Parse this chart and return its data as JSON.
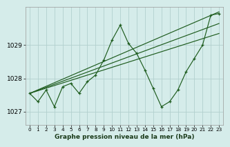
{
  "xlabel": "Graphe pression niveau de la mer (hPa)",
  "xlim": [
    -0.5,
    23.5
  ],
  "ylim": [
    1026.6,
    1030.15
  ],
  "yticks": [
    1027,
    1028,
    1029
  ],
  "xticks": [
    0,
    1,
    2,
    3,
    4,
    5,
    6,
    7,
    8,
    9,
    10,
    11,
    12,
    13,
    14,
    15,
    16,
    17,
    18,
    19,
    20,
    21,
    22,
    23
  ],
  "bg_color": "#d5ecea",
  "grid_color": "#b2d0ce",
  "line_color": "#1e5c1e",
  "zigzag": [
    1027.55,
    1027.3,
    1027.65,
    1027.15,
    1027.75,
    1027.85,
    1027.55,
    1027.9,
    1028.1,
    1028.55,
    1029.15,
    1029.6,
    1029.05,
    1028.75,
    1028.25,
    1027.7,
    1027.15,
    1027.3,
    1027.65,
    1028.2,
    1028.6,
    1029.0,
    1029.9,
    1029.95
  ],
  "trend_lines": [
    {
      "x0": 0,
      "y0": 1027.55,
      "x1": 23,
      "y1": 1030.0
    },
    {
      "x0": 0,
      "y0": 1027.55,
      "x1": 23,
      "y1": 1029.65
    },
    {
      "x0": 0,
      "y0": 1027.55,
      "x1": 23,
      "y1": 1029.35
    }
  ]
}
